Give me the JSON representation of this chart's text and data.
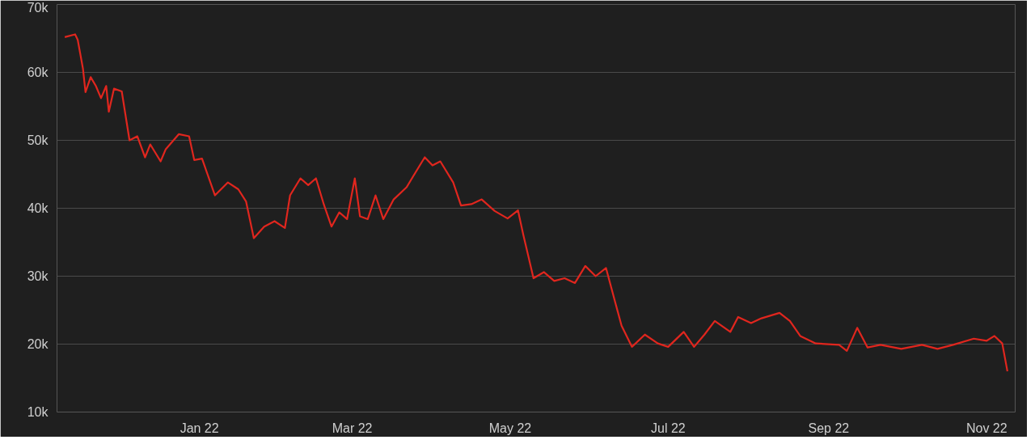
{
  "chart_data": {
    "type": "line",
    "grid": "y",
    "xlim": [
      "2021-11-07",
      "2022-11-12"
    ],
    "xticks": [
      {
        "value": "2022-01-01",
        "label": "Jan 22"
      },
      {
        "value": "2022-03-01",
        "label": "Mar 22"
      },
      {
        "value": "2022-05-01",
        "label": "May 22"
      },
      {
        "value": "2022-07-01",
        "label": "Jul 22"
      },
      {
        "value": "2022-09-01",
        "label": "Sep 22"
      },
      {
        "value": "2022-11-01",
        "label": "Nov 22"
      }
    ],
    "ylim": [
      10000,
      70000
    ],
    "yticks": [
      {
        "value": 10000,
        "label": "10k"
      },
      {
        "value": 20000,
        "label": "20k"
      },
      {
        "value": 30000,
        "label": "30k"
      },
      {
        "value": 40000,
        "label": "40k"
      },
      {
        "value": 50000,
        "label": "50k"
      },
      {
        "value": 60000,
        "label": "60k"
      },
      {
        "value": 70000,
        "label": "70k"
      }
    ],
    "x": [
      "2021-11-10",
      "2021-11-14",
      "2021-11-15",
      "2021-11-17",
      "2021-11-18",
      "2021-11-20",
      "2021-11-22",
      "2021-11-24",
      "2021-11-26",
      "2021-11-27",
      "2021-11-29",
      "2021-12-02",
      "2021-12-05",
      "2021-12-08",
      "2021-12-11",
      "2021-12-13",
      "2021-12-17",
      "2021-12-19",
      "2021-12-24",
      "2021-12-28",
      "2021-12-30",
      "2022-01-02",
      "2022-01-07",
      "2022-01-12",
      "2022-01-16",
      "2022-01-19",
      "2022-01-22",
      "2022-01-26",
      "2022-01-30",
      "2022-02-03",
      "2022-02-05",
      "2022-02-09",
      "2022-02-12",
      "2022-02-15",
      "2022-02-18",
      "2022-02-21",
      "2022-02-24",
      "2022-02-27",
      "2022-03-02",
      "2022-03-04",
      "2022-03-07",
      "2022-03-10",
      "2022-03-13",
      "2022-03-17",
      "2022-03-22",
      "2022-03-25",
      "2022-03-29",
      "2022-04-01",
      "2022-04-04",
      "2022-04-09",
      "2022-04-12",
      "2022-04-16",
      "2022-04-20",
      "2022-04-25",
      "2022-04-30",
      "2022-05-04",
      "2022-05-06",
      "2022-05-10",
      "2022-05-14",
      "2022-05-18",
      "2022-05-22",
      "2022-05-26",
      "2022-05-30",
      "2022-06-03",
      "2022-06-07",
      "2022-06-13",
      "2022-06-17",
      "2022-06-22",
      "2022-06-27",
      "2022-07-01",
      "2022-07-07",
      "2022-07-11",
      "2022-07-15",
      "2022-07-19",
      "2022-07-25",
      "2022-07-28",
      "2022-08-02",
      "2022-08-06",
      "2022-08-13",
      "2022-08-17",
      "2022-08-21",
      "2022-08-27",
      "2022-09-05",
      "2022-09-08",
      "2022-09-12",
      "2022-09-16",
      "2022-09-21",
      "2022-09-29",
      "2022-10-07",
      "2022-10-13",
      "2022-10-19",
      "2022-10-27",
      "2022-11-01",
      "2022-11-04",
      "2022-11-07",
      "2022-11-09"
    ],
    "series": [
      {
        "color": "#e0261e",
        "values": [
          65200,
          65600,
          64800,
          60600,
          57100,
          59300,
          58000,
          56200,
          58000,
          54200,
          57600,
          57200,
          50000,
          50600,
          47500,
          49400,
          46900,
          48700,
          50900,
          50600,
          47100,
          47300,
          41900,
          43800,
          42800,
          41000,
          35600,
          37300,
          38100,
          37100,
          41900,
          44400,
          43400,
          44400,
          40600,
          37300,
          39400,
          38400,
          44400,
          38800,
          38400,
          41900,
          38400,
          41300,
          43100,
          45000,
          47500,
          46300,
          46900,
          43800,
          40400,
          40600,
          41300,
          39600,
          38500,
          39700,
          36200,
          29700,
          30600,
          29300,
          29700,
          29000,
          31500,
          30000,
          31200,
          22700,
          19600,
          21400,
          20100,
          19600,
          21800,
          19600,
          21400,
          23400,
          21800,
          24000,
          23100,
          23800,
          24600,
          23400,
          21200,
          20100,
          19900,
          19000,
          22400,
          19500,
          19900,
          19300,
          19900,
          19300,
          19900,
          20800,
          20500,
          21200,
          20100,
          16000
        ]
      }
    ]
  }
}
